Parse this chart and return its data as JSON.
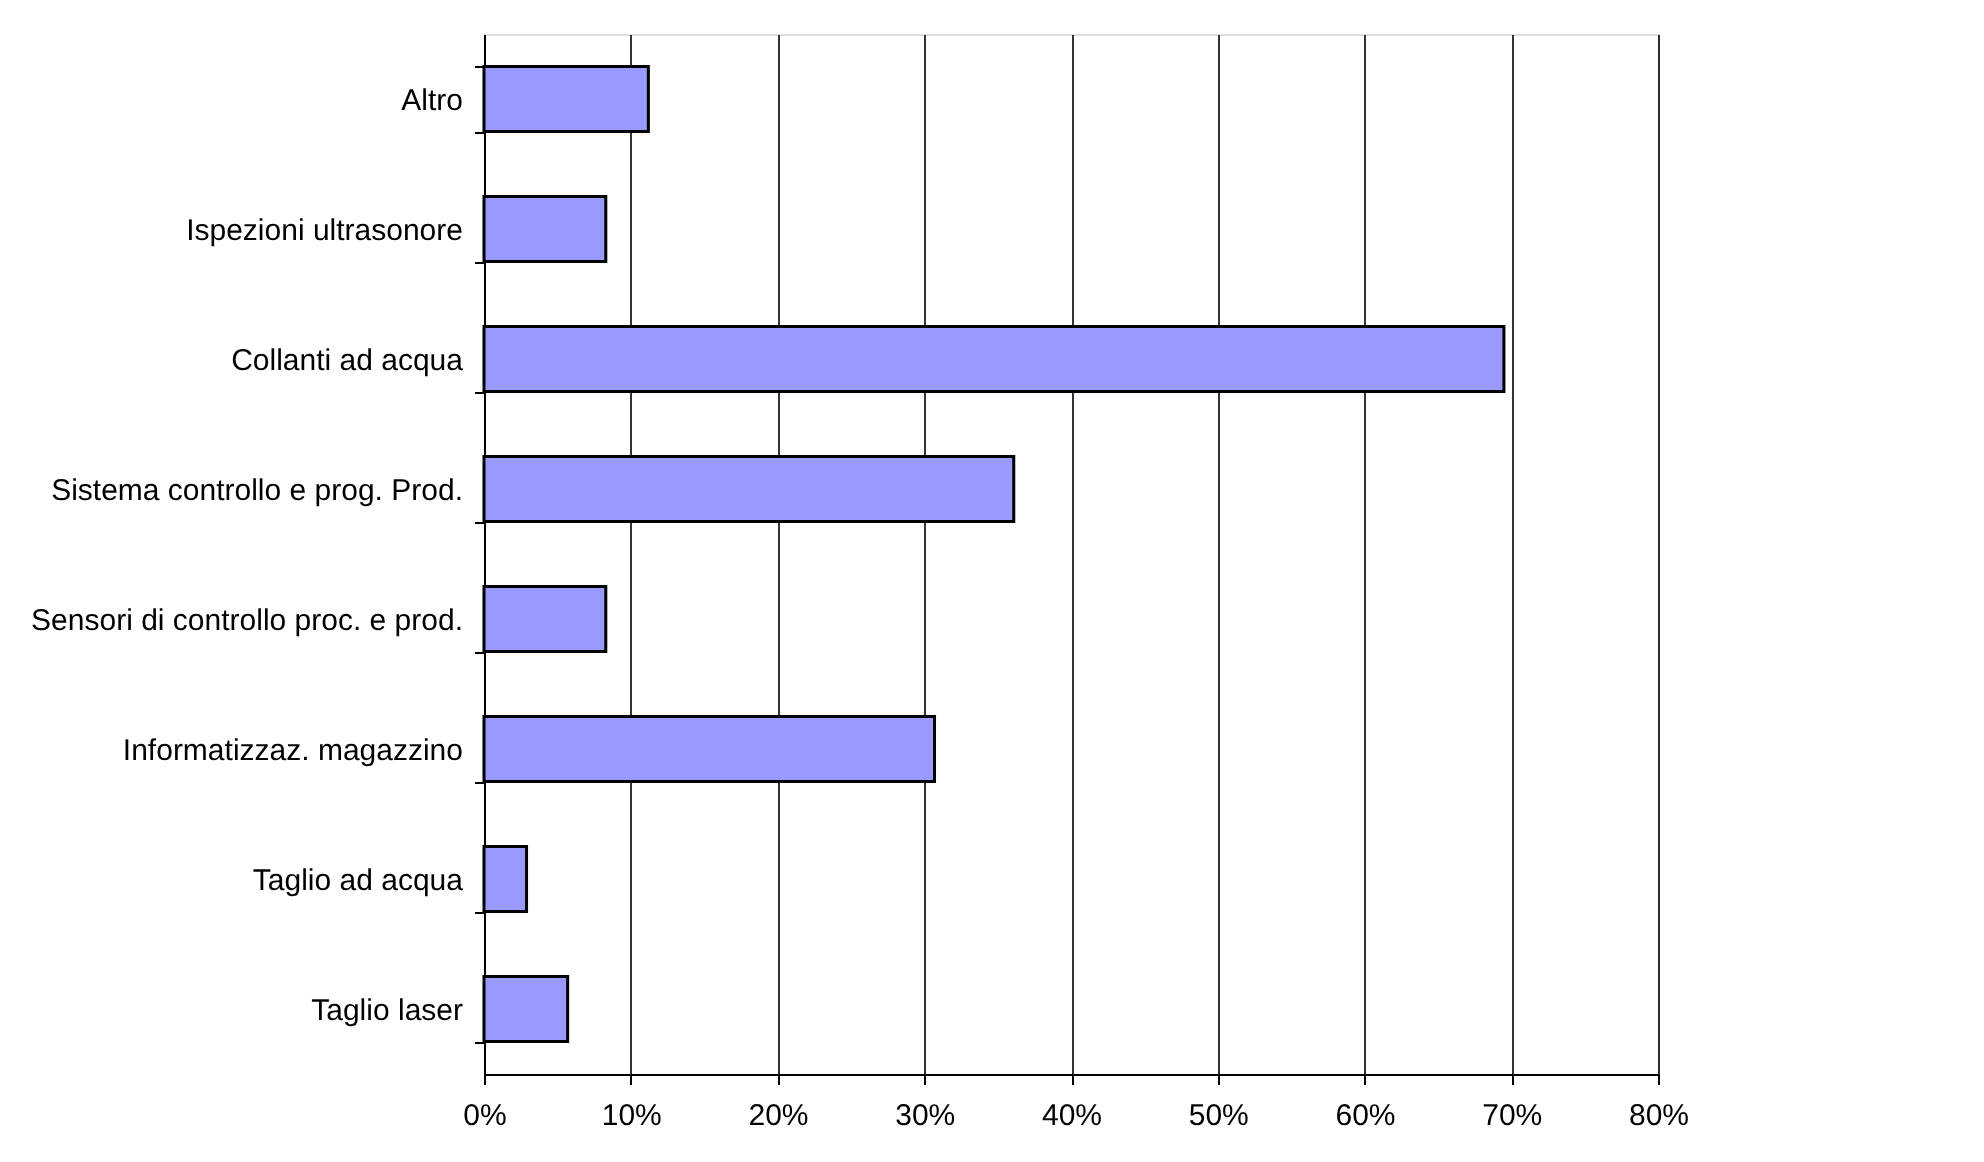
{
  "chart_data": {
    "type": "bar",
    "orientation": "horizontal",
    "categories": [
      "Altro",
      "Ispezioni ultrasonore",
      "Collanti ad acqua",
      "Sistema controllo e prog. Prod.",
      "Sensori di controllo proc. e prod.",
      "Informatizzaz. magazzino",
      "Taglio ad acqua",
      "Taglio laser"
    ],
    "values": [
      11.2,
      8.3,
      69.5,
      36.1,
      8.3,
      30.7,
      2.9,
      5.7
    ],
    "color": "#9999ff",
    "xlim": [
      0,
      80
    ],
    "xticks": [
      {
        "value": 0,
        "label": "0%"
      },
      {
        "value": 10,
        "label": "10%"
      },
      {
        "value": 20,
        "label": "20%"
      },
      {
        "value": 30,
        "label": "30%"
      },
      {
        "value": 40,
        "label": "40%"
      },
      {
        "value": 50,
        "label": "50%"
      },
      {
        "value": 60,
        "label": "60%"
      },
      {
        "value": 70,
        "label": "70%"
      },
      {
        "value": 80,
        "label": "80%"
      }
    ],
    "grid": "x"
  }
}
